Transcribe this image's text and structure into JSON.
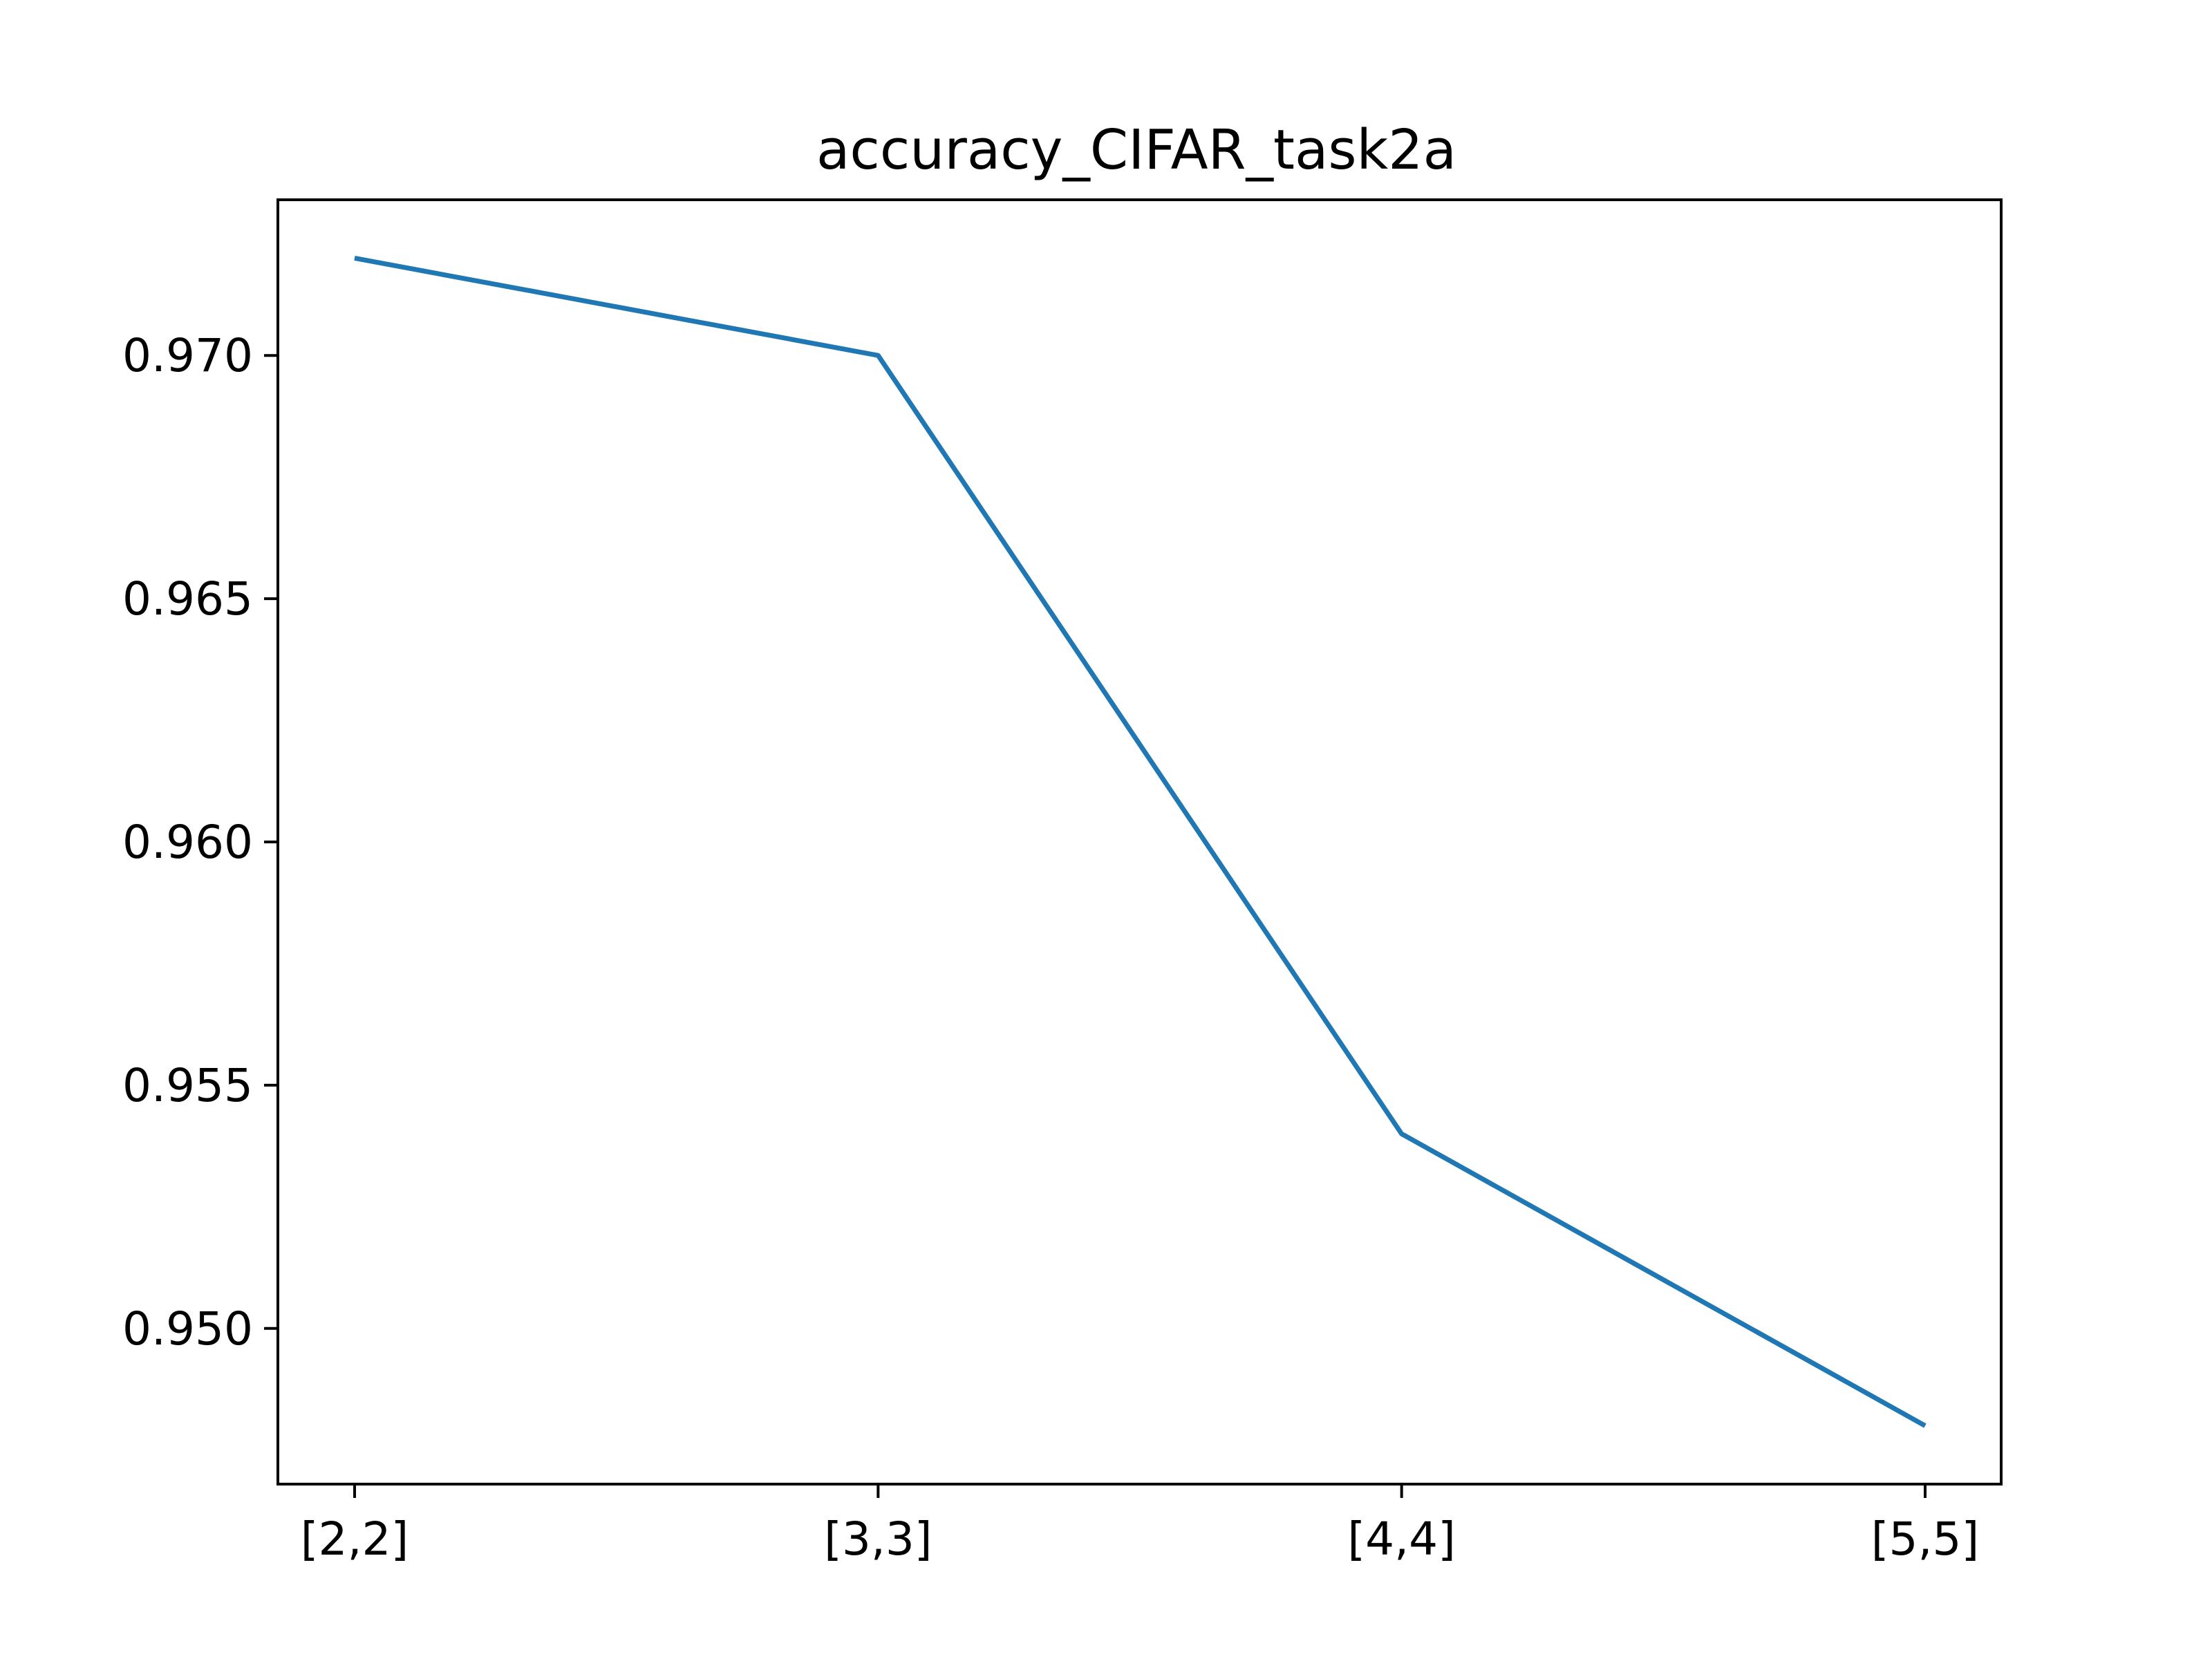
{
  "chart_data": {
    "type": "line",
    "title": "accuracy_CIFAR_task2a",
    "xlabel": "",
    "ylabel": "",
    "categories": [
      "[2,2]",
      "[3,3]",
      "[4,4]",
      "[5,5]"
    ],
    "series": [
      {
        "color": "#1f77b4",
        "values": [
          0.972,
          0.97,
          0.954,
          0.948
        ]
      }
    ],
    "yticks": [
      0.95,
      0.955,
      0.96,
      0.965,
      0.97
    ],
    "ytick_labels": [
      "0.950",
      "0.955",
      "0.960",
      "0.965",
      "0.970"
    ],
    "ylim": [
      0.9468,
      0.9732
    ],
    "grid": false,
    "legend": "none"
  }
}
